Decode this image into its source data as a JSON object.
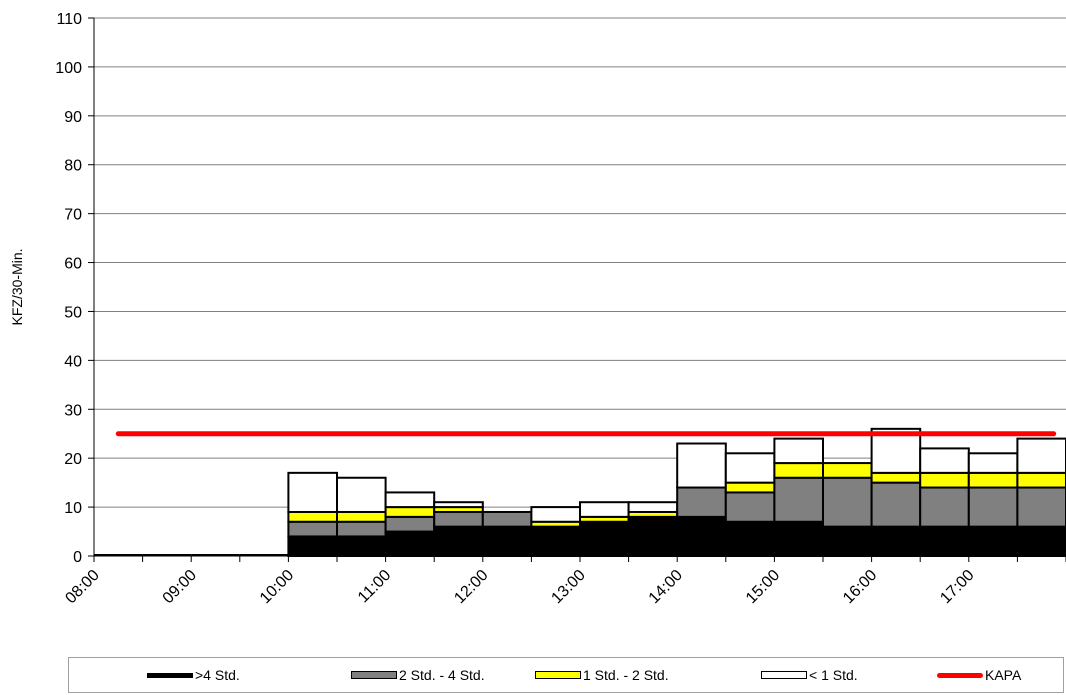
{
  "chart_data": {
    "type": "bar",
    "stacked": true,
    "ylabel": "KFZ/30-Min.",
    "xlabel": "",
    "ylim": [
      0,
      110
    ],
    "yticks": [
      0,
      10,
      20,
      30,
      40,
      50,
      60,
      70,
      80,
      90,
      100,
      110
    ],
    "xtick_labels": [
      "08:00",
      "09:00",
      "10:00",
      "11:00",
      "12:00",
      "13:00",
      "14:00",
      "15:00",
      "16:00",
      "17:00"
    ],
    "categories": [
      "08:00",
      "08:30",
      "09:00",
      "09:30",
      "10:00",
      "10:30",
      "11:00",
      "11:30",
      "12:00",
      "12:30",
      "13:00",
      "13:30",
      "14:00",
      "14:30",
      "15:00",
      "15:30",
      "16:00",
      "16:30",
      "17:00",
      "17:30"
    ],
    "grid": true,
    "legend_position": "bottom",
    "series": [
      {
        "name": ">4 Std.",
        "color": "#000000",
        "values": [
          0,
          0,
          0,
          0,
          4,
          4,
          5,
          6,
          6,
          6,
          7,
          8,
          8,
          7,
          7,
          6,
          6,
          6,
          6,
          6
        ]
      },
      {
        "name": "2 Std. - 4 Std.",
        "color": "#808080",
        "values": [
          0,
          0,
          0,
          0,
          3,
          3,
          3,
          3,
          3,
          0,
          0,
          0,
          6,
          6,
          9,
          10,
          9,
          8,
          8,
          8
        ]
      },
      {
        "name": "1 Std. - 2 Std.",
        "color": "#ffff00",
        "values": [
          0,
          0,
          0,
          0,
          2,
          2,
          2,
          1,
          0,
          1,
          1,
          1,
          0,
          2,
          3,
          3,
          2,
          3,
          3,
          3
        ]
      },
      {
        "name": "< 1 Std.",
        "color": "#ffffff",
        "values": [
          0,
          0,
          0,
          0,
          8,
          7,
          3,
          1,
          0,
          3,
          3,
          2,
          9,
          6,
          5,
          0,
          9,
          5,
          4,
          7
        ]
      }
    ],
    "lines": [
      {
        "name": "KAPA",
        "color": "#ff0000",
        "value": 25
      }
    ]
  }
}
